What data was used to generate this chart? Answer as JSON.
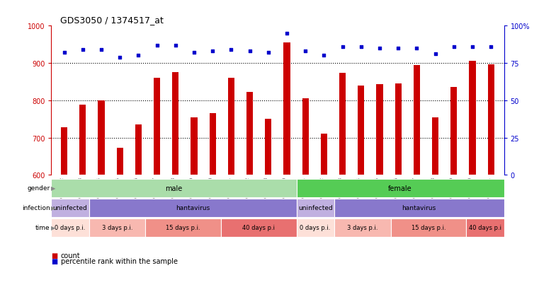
{
  "title": "GDS3050 / 1374517_at",
  "samples": [
    "GSM175452",
    "GSM175453",
    "GSM175454",
    "GSM175455",
    "GSM175456",
    "GSM175457",
    "GSM175458",
    "GSM175459",
    "GSM175460",
    "GSM175461",
    "GSM175462",
    "GSM175463",
    "GSM175440",
    "GSM175441",
    "GSM175442",
    "GSM175443",
    "GSM175444",
    "GSM175445",
    "GSM175446",
    "GSM175447",
    "GSM175448",
    "GSM175449",
    "GSM175450",
    "GSM175451"
  ],
  "counts": [
    727,
    789,
    800,
    672,
    736,
    860,
    876,
    755,
    765,
    860,
    822,
    750,
    955,
    805,
    710,
    873,
    840,
    843,
    845,
    895,
    755,
    835,
    905,
    896
  ],
  "percentiles": [
    82,
    84,
    84,
    79,
    80,
    87,
    87,
    82,
    83,
    84,
    83,
    82,
    95,
    83,
    80,
    86,
    86,
    85,
    85,
    85,
    81,
    86,
    86,
    86
  ],
  "ylim_left": [
    600,
    1000
  ],
  "ylim_right": [
    0,
    100
  ],
  "yticks_left": [
    600,
    700,
    800,
    900,
    1000
  ],
  "yticks_right": [
    0,
    25,
    50,
    75,
    100
  ],
  "ytick_right_labels": [
    "0",
    "25",
    "50",
    "75",
    "100%"
  ],
  "bar_color": "#cc0000",
  "dot_color": "#0000cc",
  "grid_color": "#000000",
  "bg_color": "#ffffff",
  "plot_bg_color": "#ffffff",
  "bar_width": 0.35,
  "gender_groups": [
    {
      "label": "male",
      "start": 0,
      "end": 13,
      "color": "#aaddaa"
    },
    {
      "label": "female",
      "start": 13,
      "end": 24,
      "color": "#55cc55"
    }
  ],
  "infection_groups": [
    {
      "label": "uninfected",
      "start": 0,
      "end": 2,
      "color": "#c0b0e0"
    },
    {
      "label": "hantavirus",
      "start": 2,
      "end": 13,
      "color": "#8878cc"
    },
    {
      "label": "uninfected",
      "start": 13,
      "end": 15,
      "color": "#c0b0e0"
    },
    {
      "label": "hantavirus",
      "start": 15,
      "end": 24,
      "color": "#8878cc"
    }
  ],
  "time_groups": [
    {
      "label": "0 days p.i.",
      "start": 0,
      "end": 2,
      "color": "#fde0d8"
    },
    {
      "label": "3 days p.i.",
      "start": 2,
      "end": 5,
      "color": "#f8b8b0"
    },
    {
      "label": "15 days p.i.",
      "start": 5,
      "end": 9,
      "color": "#f09088"
    },
    {
      "label": "40 days p.i",
      "start": 9,
      "end": 13,
      "color": "#e87070"
    },
    {
      "label": "0 days p.i.",
      "start": 13,
      "end": 15,
      "color": "#fde0d8"
    },
    {
      "label": "3 days p.i.",
      "start": 15,
      "end": 18,
      "color": "#f8b8b0"
    },
    {
      "label": "15 days p.i.",
      "start": 18,
      "end": 22,
      "color": "#f09088"
    },
    {
      "label": "40 days p.i",
      "start": 22,
      "end": 24,
      "color": "#e87070"
    }
  ],
  "row_labels": [
    "gender",
    "infection",
    "time"
  ],
  "legend_items": [
    {
      "color": "#cc0000",
      "label": "count"
    },
    {
      "color": "#0000cc",
      "label": "percentile rank within the sample"
    }
  ]
}
